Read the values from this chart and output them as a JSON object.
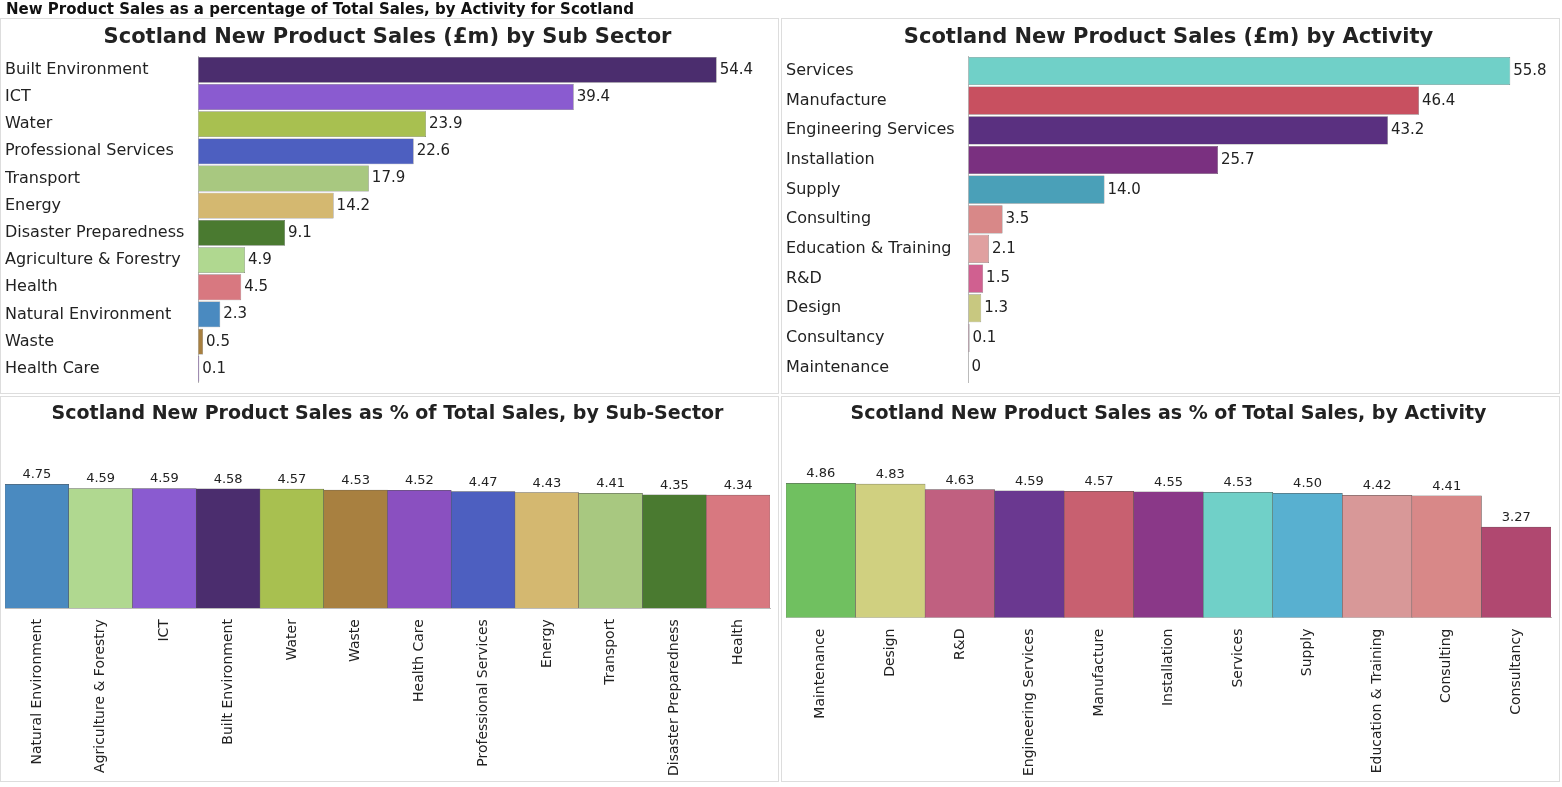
{
  "chart_data": [
    {
      "type": "other",
      "title": "New Product Sales as a percentage of Total Sales, by Activity for Scotland"
    },
    {
      "type": "bar",
      "orientation": "horizontal",
      "title": "Scotland New Product Sales (£m) by Sub Sector",
      "categories": [
        "Built Environment",
        "ICT",
        "Water",
        "Professional Services",
        "Transport",
        "Energy",
        "Disaster Preparedness",
        "Agriculture & Forestry",
        "Health",
        "Natural Environment",
        "Waste",
        "Health Care"
      ],
      "values": [
        54.4,
        39.4,
        23.9,
        22.6,
        17.9,
        14.2,
        9.1,
        4.9,
        4.5,
        2.3,
        0.5,
        0.1
      ],
      "value_labels": [
        "54.4",
        "39.4",
        "23.9",
        "22.6",
        "17.9",
        "14.2",
        "9.1",
        "4.9",
        "4.5",
        "2.3",
        "0.5",
        "0.1"
      ],
      "colors": [
        "#4b2d6e",
        "#8a5bd0",
        "#a8c050",
        "#4d5fc0",
        "#a8c880",
        "#d4b870",
        "#4a7a30",
        "#b0d890",
        "#d87880",
        "#4a8ac0",
        "#a88040",
        "#8a50c0"
      ]
    },
    {
      "type": "bar",
      "orientation": "horizontal",
      "title": "Scotland New Product Sales (£m) by Activity",
      "categories": [
        "Services",
        "Manufacture",
        "Engineering Services",
        "Installation",
        "Supply",
        "Consulting",
        "Education & Training",
        "R&D",
        "Design",
        "Consultancy",
        "Maintenance"
      ],
      "values": [
        55.8,
        46.4,
        43.2,
        25.7,
        14.0,
        3.5,
        2.1,
        1.5,
        1.3,
        0.1,
        0
      ],
      "value_labels": [
        "55.8",
        "46.4",
        "43.2",
        "25.7",
        "14.0",
        "3.5",
        "2.1",
        "1.5",
        "1.3",
        "0.1",
        "0"
      ],
      "colors": [
        "#70d0c8",
        "#c85060",
        "#5a3080",
        "#7a3080",
        "#4aa0b8",
        "#d88888",
        "#e0a0a0",
        "#d06090",
        "#c8c880",
        "#a04070",
        "#80d070"
      ]
    },
    {
      "type": "bar",
      "title": "Scotland New Product Sales as % of Total Sales, by Sub-Sector",
      "categories": [
        "Natural Environment",
        "Agriculture & Forestry",
        "ICT",
        "Built Environment",
        "Water",
        "Waste",
        "Health Care",
        "Professional Services",
        "Energy",
        "Transport",
        "Disaster Preparedness",
        "Health"
      ],
      "values": [
        4.75,
        4.59,
        4.59,
        4.58,
        4.57,
        4.53,
        4.52,
        4.47,
        4.43,
        4.41,
        4.35,
        4.34
      ],
      "value_labels": [
        "4.75",
        "4.59",
        "4.59",
        "4.58",
        "4.57",
        "4.53",
        "4.52",
        "4.47",
        "4.43",
        "4.41",
        "4.35",
        "4.34"
      ],
      "colors": [
        "#4a8ac0",
        "#b0d890",
        "#8a5bd0",
        "#4b2d6e",
        "#a8c050",
        "#a88040",
        "#8a50c0",
        "#4d5fc0",
        "#d4b870",
        "#a8c880",
        "#4a7a30",
        "#d87880"
      ]
    },
    {
      "type": "bar",
      "title": "Scotland New Product Sales as % of Total Sales, by Activity",
      "categories": [
        "Maintenance",
        "Design",
        "R&D",
        "Engineering Services",
        "Manufacture",
        "Installation",
        "Services",
        "Supply",
        "Education & Training",
        "Consulting",
        "Consultancy"
      ],
      "values": [
        4.86,
        4.83,
        4.63,
        4.59,
        4.57,
        4.55,
        4.53,
        4.5,
        4.42,
        4.41,
        3.27
      ],
      "value_labels": [
        "4.86",
        "4.83",
        "4.63",
        "4.59",
        "4.57",
        "4.55",
        "4.53",
        "4.50",
        "4.42",
        "4.41",
        "3.27"
      ],
      "colors": [
        "#70c060",
        "#d0d080",
        "#c06080",
        "#6a3890",
        "#c86070",
        "#8a3888",
        "#70d0c8",
        "#58b0d0",
        "#d89898",
        "#d88888",
        "#b04870"
      ]
    }
  ]
}
